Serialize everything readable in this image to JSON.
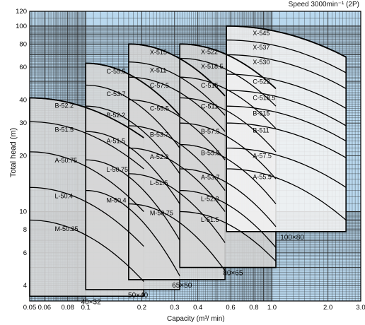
{
  "chart_data": {
    "type": "area",
    "title": "Speed 3000min⁻¹ (2P)",
    "xlabel": "Capacity (m³/ min)",
    "ylabel": "Total head (m)",
    "xscale": "log",
    "yscale": "log",
    "xlim": [
      0.05,
      3.0
    ],
    "ylim": [
      3.3,
      120
    ],
    "grid": true,
    "x_ticks": [
      "0.05",
      "0.06",
      "0.08",
      "0.1",
      "0.2",
      "0.3",
      "0.4",
      "0.6",
      "0.8",
      "1.0",
      "2.0",
      "3.0"
    ],
    "x_tick_values": [
      0.05,
      0.06,
      0.08,
      0.1,
      0.2,
      0.3,
      0.4,
      0.6,
      0.8,
      1.0,
      2.0,
      3.0
    ],
    "y_ticks": [
      "4",
      "6",
      "8",
      "10",
      "20",
      "30",
      "40",
      "60",
      "80",
      "100",
      "120"
    ],
    "y_tick_values": [
      4,
      6,
      8,
      10,
      20,
      30,
      40,
      60,
      80,
      100,
      120
    ],
    "series": [
      {
        "name": "40×32",
        "x": [
          0.05,
          0.205
        ],
        "y": [
          3.5,
          41
        ],
        "curves": [
          {
            "label": "B-52.2",
            "h0": 41,
            "q_end": 0.205,
            "h_end": 25
          },
          {
            "label": "B-51.5",
            "h0": 30.5,
            "q_end": 0.205,
            "h_end": 17
          },
          {
            "label": "A-50.75",
            "h0": 21,
            "q_end": 0.205,
            "h_end": 10
          },
          {
            "label": "L-50.4",
            "h0": 13.5,
            "q_end": 0.205,
            "h_end": 6.5
          },
          {
            "label": "M-50.25",
            "h0": 9,
            "q_end": 0.205,
            "h_end": 4.2
          }
        ]
      },
      {
        "name": "50×40",
        "x": [
          0.1,
          0.32
        ],
        "y": [
          3.8,
          63
        ],
        "curves": [
          {
            "label": "C-55.5",
            "h0": 63,
            "q_end": 0.32,
            "h_end": 33
          },
          {
            "label": "C-53.7",
            "h0": 48,
            "q_end": 0.32,
            "h_end": 22
          },
          {
            "label": "B-52.2",
            "h0": 37,
            "q_end": 0.32,
            "h_end": 16
          },
          {
            "label": "A-51.5",
            "h0": 27,
            "q_end": 0.32,
            "h_end": 11
          },
          {
            "label": "L-50.75",
            "h0": 19,
            "q_end": 0.32,
            "h_end": 7
          },
          {
            "label": "M-50.4",
            "h0": 13,
            "q_end": 0.32,
            "h_end": 4.5
          }
        ]
      },
      {
        "name": "65×50",
        "x": [
          0.17,
          0.56
        ],
        "y": [
          4.3,
          80
        ],
        "curves": [
          {
            "label": "X-515",
            "h0": 80,
            "q_end": 0.56,
            "h_end": 42
          },
          {
            "label": "X-511",
            "h0": 64,
            "q_end": 0.56,
            "h_end": 33
          },
          {
            "label": "C-57.5",
            "h0": 53,
            "q_end": 0.56,
            "h_end": 27
          },
          {
            "label": "C-55.5",
            "h0": 40,
            "q_end": 0.56,
            "h_end": 19
          },
          {
            "label": "B-53.7",
            "h0": 29,
            "q_end": 0.56,
            "h_end": 13
          },
          {
            "label": "A-52.2",
            "h0": 22,
            "q_end": 0.56,
            "h_end": 10
          },
          {
            "label": "L-51.5",
            "h0": 16,
            "q_end": 0.56,
            "h_end": 6.8
          },
          {
            "label": "M-50.75",
            "h0": 11,
            "q_end": 0.56,
            "h_end": 4.8
          }
        ]
      },
      {
        "name": "80×65",
        "x": [
          0.32,
          1.05
        ],
        "y": [
          5.0,
          80
        ],
        "curves": [
          {
            "label": "X-522",
            "h0": 80,
            "q_end": 1.05,
            "h_end": 46
          },
          {
            "label": "X-518.5",
            "h0": 67,
            "q_end": 1.05,
            "h_end": 37
          },
          {
            "label": "C-515",
            "h0": 53,
            "q_end": 1.05,
            "h_end": 28
          },
          {
            "label": "C-511",
            "h0": 41,
            "q_end": 1.05,
            "h_end": 21
          },
          {
            "label": "B-57.5",
            "h0": 30,
            "q_end": 1.05,
            "h_end": 15
          },
          {
            "label": "B-55.5",
            "h0": 23,
            "q_end": 1.05,
            "h_end": 11
          },
          {
            "label": "A-53.7",
            "h0": 17,
            "q_end": 1.05,
            "h_end": 8.3
          },
          {
            "label": "L-52.2",
            "h0": 13,
            "q_end": 1.05,
            "h_end": 6.4
          },
          {
            "label": "L-51.5",
            "h0": 10,
            "q_end": 1.05,
            "h_end": 5.4
          }
        ]
      },
      {
        "name": "100×80",
        "x": [
          0.57,
          2.5
        ],
        "y": [
          7.8,
          100
        ],
        "curves": [
          {
            "label": "X-545",
            "h0": 100,
            "q_end": 2.5,
            "h_end": 68
          },
          {
            "label": "X-537",
            "h0": 84,
            "q_end": 2.5,
            "h_end": 56
          },
          {
            "label": "X-530",
            "h0": 70,
            "q_end": 2.5,
            "h_end": 46
          },
          {
            "label": "C-522",
            "h0": 55,
            "q_end": 2.5,
            "h_end": 36
          },
          {
            "label": "C-518.5",
            "h0": 45,
            "q_end": 2.5,
            "h_end": 29
          },
          {
            "label": "B-515",
            "h0": 37,
            "q_end": 2.5,
            "h_end": 24
          },
          {
            "label": "B-511",
            "h0": 30,
            "q_end": 2.5,
            "h_end": 19.5
          },
          {
            "label": "A-57.5",
            "h0": 22,
            "q_end": 2.5,
            "h_end": 13.5
          },
          {
            "label": "A-55.5",
            "h0": 17,
            "q_end": 2.5,
            "h_end": 9
          }
        ]
      }
    ]
  },
  "style": {
    "background": "#b9d8ee",
    "grid_minor": "#2a2a2a",
    "region_fill": "#d6d6d6",
    "region_fill_light": "#f2f2f2",
    "curve_color": "#000000"
  }
}
